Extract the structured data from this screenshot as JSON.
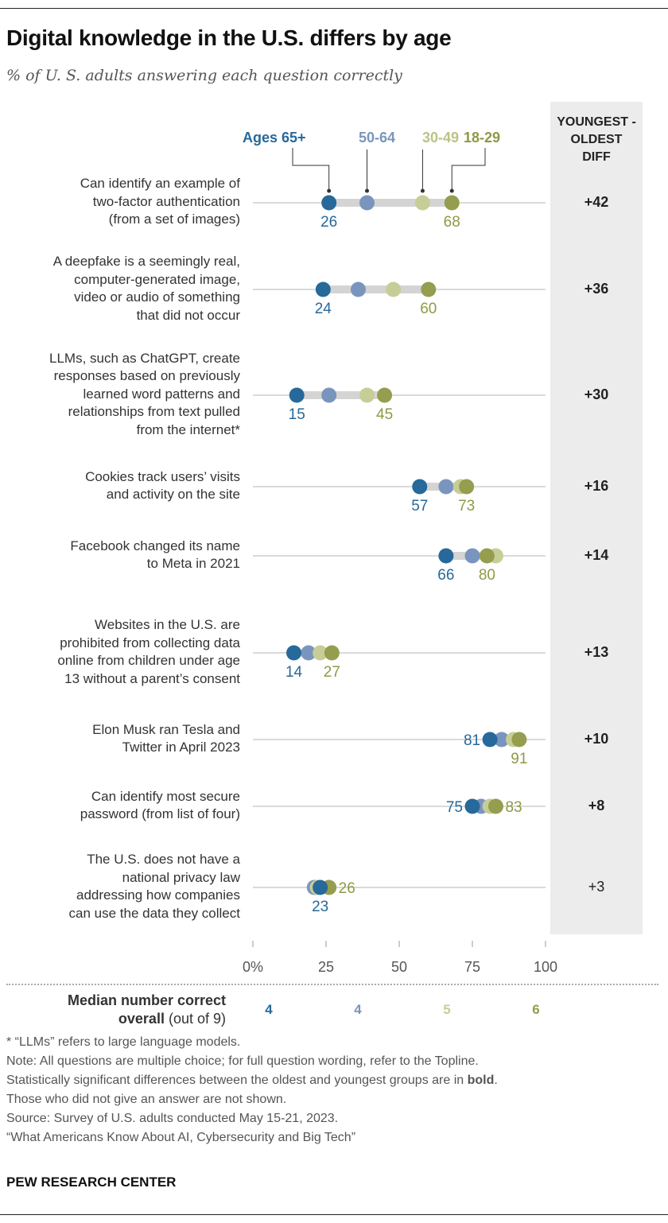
{
  "title": "Digital knowledge in the U.S. differs by age",
  "subtitle": "% of U. S. adults answering each question correctly",
  "diff_header": [
    "YOUNGEST -",
    "OLDEST",
    "DIFF"
  ],
  "colors": {
    "ages_65_plus": "#26699a",
    "ages_50_64": "#7a95bd",
    "ages_30_49": "#c7cd96",
    "ages_18_29": "#959d4e"
  },
  "chart_data": {
    "type": "dot",
    "xlim": [
      0,
      100
    ],
    "x_ticks": [
      "0%",
      "25",
      "50",
      "75",
      "100"
    ],
    "series": [
      {
        "name": "Ages 65+",
        "values": [
          26,
          24,
          15,
          57,
          66,
          14,
          81,
          75,
          23
        ]
      },
      {
        "name": "50-64",
        "values": [
          39,
          36,
          26,
          66,
          75,
          19,
          85,
          78,
          21
        ]
      },
      {
        "name": "30-49",
        "values": [
          58,
          48,
          39,
          71,
          83,
          23,
          89,
          81,
          22
        ]
      },
      {
        "name": "18-29",
        "values": [
          68,
          60,
          45,
          73,
          80,
          27,
          91,
          83,
          26
        ]
      }
    ],
    "rows": [
      {
        "label": [
          "Can identify an example of",
          "two-factor authentication",
          "(from a set of images)"
        ],
        "diff": "+42",
        "significant": true
      },
      {
        "label": [
          "A deepfake is a seemingly real,",
          "computer-generated image,",
          "video or audio of something",
          "that did not occur"
        ],
        "diff": "+36",
        "significant": true
      },
      {
        "label": [
          "LLMs, such as ChatGPT, create",
          "responses based on previously",
          "learned word patterns and",
          "relationships from text pulled",
          "from the internet*"
        ],
        "diff": "+30",
        "significant": true
      },
      {
        "label": [
          "Cookies track users’ visits",
          "and activity on the site"
        ],
        "diff": "+16",
        "significant": true
      },
      {
        "label": [
          "Facebook changed its name",
          "to Meta in 2021"
        ],
        "diff": "+14",
        "significant": true
      },
      {
        "label": [
          "Websites in the U.S. are",
          "prohibited from collecting data",
          "online from children under age",
          "13 without a parent’s consent"
        ],
        "diff": "+13",
        "significant": true
      },
      {
        "label": [
          "Elon Musk ran Tesla and",
          "Twitter in April 2023"
        ],
        "diff": "+10",
        "significant": true
      },
      {
        "label": [
          "Can identify most secure",
          "password (from list of four)"
        ],
        "diff": "+8",
        "significant": true
      },
      {
        "label": [
          "The U.S. does not have a",
          "national privacy law",
          "addressing how companies",
          "can use the data they collect"
        ],
        "diff": "+3",
        "significant": false
      }
    ],
    "value_labels_placement": [
      [
        "below",
        "below"
      ],
      [
        "below",
        "below"
      ],
      [
        "below",
        "below"
      ],
      [
        "below",
        "below"
      ],
      [
        "below",
        "below"
      ],
      [
        "below",
        "below"
      ],
      [
        "left",
        "below"
      ],
      [
        "left",
        "right"
      ],
      [
        "below",
        "right"
      ]
    ]
  },
  "median": {
    "label_bold": "Median number correct",
    "label_bold2": "overall",
    "label_rest": " (out of 9)",
    "values": [
      "4",
      "4",
      "5",
      "6"
    ]
  },
  "footnotes": {
    "llm": "* “LLMs” refers to large language models.",
    "note": "Note: All questions are multiple choice; for full question wording, refer to the Topline.",
    "sig_pre": "Statistically significant differences between the oldest and youngest groups are in ",
    "sig_bold": "bold",
    "sig_post": ".",
    "noanswer": "Those who did not give an answer are not shown.",
    "source": "Source: Survey of U.S. adults conducted May 15-21, 2023.",
    "report": "“What Americans Know About AI, Cybersecurity and Big Tech”"
  },
  "logo": "PEW RESEARCH CENTER"
}
